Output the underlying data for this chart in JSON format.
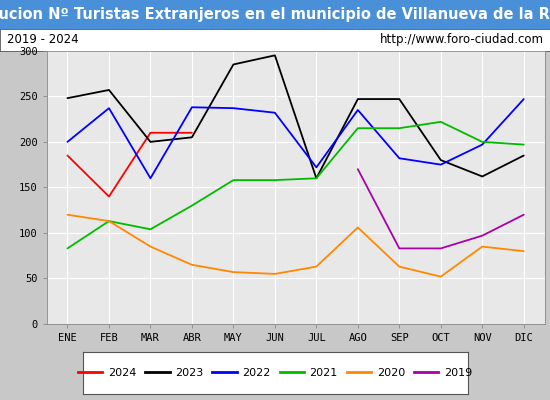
{
  "title": "Evolucion Nº Turistas Extranjeros en el municipio de Villanueva de la Reina",
  "subtitle_left": "2019 - 2024",
  "subtitle_right": "http://www.foro-ciudad.com",
  "months": [
    "ENE",
    "FEB",
    "MAR",
    "ABR",
    "MAY",
    "JUN",
    "JUL",
    "AGO",
    "SEP",
    "OCT",
    "NOV",
    "DIC"
  ],
  "ylim": [
    0,
    300
  ],
  "yticks": [
    0,
    50,
    100,
    150,
    200,
    250,
    300
  ],
  "series": {
    "2024": {
      "color": "#ff0000",
      "values": [
        185,
        140,
        210,
        210,
        null,
        null,
        null,
        null,
        null,
        null,
        null,
        null
      ]
    },
    "2023": {
      "color": "#000000",
      "values": [
        248,
        257,
        200,
        205,
        285,
        295,
        160,
        247,
        247,
        180,
        162,
        185
      ]
    },
    "2022": {
      "color": "#0000ff",
      "values": [
        200,
        237,
        160,
        238,
        237,
        232,
        172,
        235,
        182,
        175,
        197,
        247
      ]
    },
    "2021": {
      "color": "#00bb00",
      "values": [
        83,
        113,
        104,
        130,
        158,
        158,
        160,
        215,
        215,
        222,
        200,
        197
      ]
    },
    "2020": {
      "color": "#ff8800",
      "values": [
        120,
        113,
        85,
        65,
        57,
        55,
        63,
        106,
        63,
        52,
        85,
        80
      ]
    },
    "2019": {
      "color": "#aa00aa",
      "values": [
        null,
        null,
        null,
        null,
        null,
        null,
        null,
        170,
        83,
        83,
        97,
        120
      ]
    }
  },
  "title_bg": "#4a90d9",
  "title_color": "#ffffff",
  "plot_bg": "#e8e8e8",
  "grid_color": "#ffffff",
  "title_fontsize": 10.5,
  "subtitle_fontsize": 8.5,
  "tick_fontsize": 7.5,
  "legend_fontsize": 8
}
